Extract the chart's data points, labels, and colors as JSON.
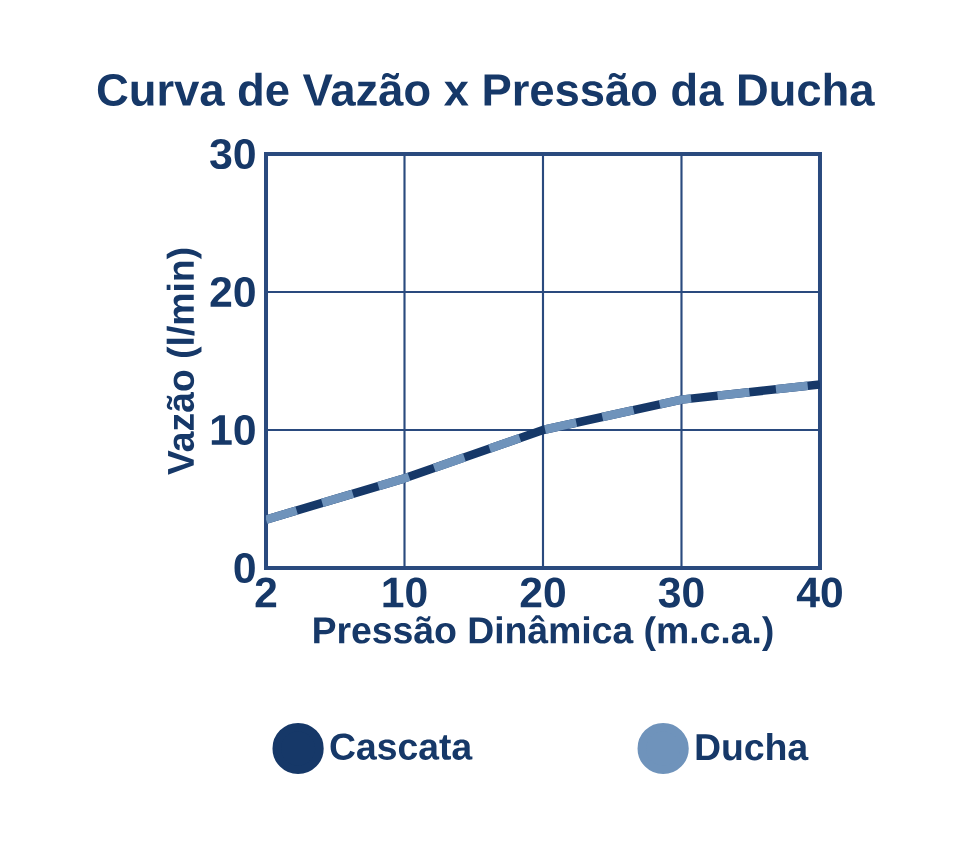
{
  "chart_data": {
    "type": "line",
    "title": "Curva de Vazão x Pressão da Ducha",
    "xlabel": "Pressão Dinâmica (m.c.a.)",
    "ylabel": "Vazão (l/min)",
    "categories": [
      "2",
      "10",
      "20",
      "30",
      "40"
    ],
    "series": [
      {
        "name": "Cascata",
        "color": "#163868",
        "values": [
          3.5,
          6.5,
          10,
          12.2,
          13.3
        ],
        "line_style": "solid"
      },
      {
        "name": "Ducha",
        "color": "#6f93bb",
        "values": [
          3.5,
          6.5,
          10,
          12.2,
          13.3
        ],
        "line_style": "dashed"
      }
    ],
    "ylim": [
      0,
      30
    ],
    "yticks": [
      0,
      10,
      20,
      30
    ],
    "grid": true,
    "legend": "bottom",
    "marker": "none"
  }
}
